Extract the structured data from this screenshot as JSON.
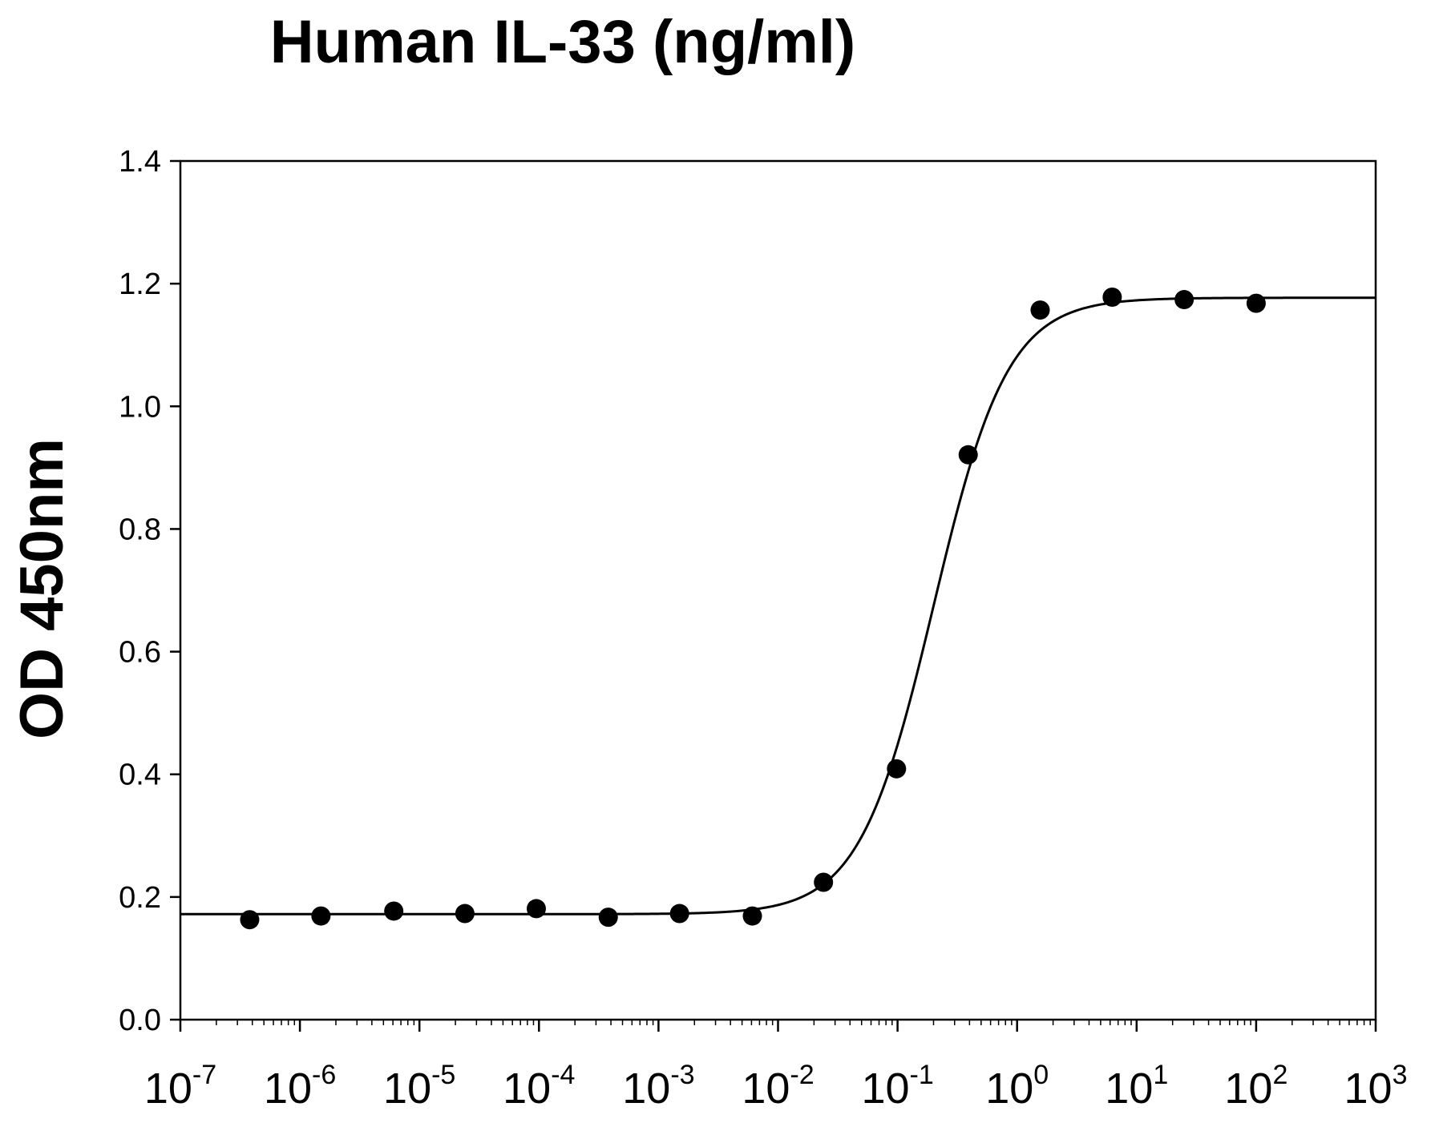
{
  "chart_data": {
    "type": "scatter",
    "title": "Human IL-33 (ng/ml)",
    "xlabel": "",
    "ylabel": "OD 450nm",
    "xscale": "log",
    "xlim": [
      1e-07,
      1000
    ],
    "ylim": [
      0,
      1.4
    ],
    "grid": false,
    "legend": "none",
    "y_ticks": [
      "0.0",
      "0.2",
      "0.4",
      "0.6",
      "0.8",
      "1.0",
      "1.2",
      "1.4"
    ],
    "x_ticks": [
      {
        "base": "10",
        "exp": "-7",
        "value": 1e-07
      },
      {
        "base": "10",
        "exp": "-6",
        "value": 1e-06
      },
      {
        "base": "10",
        "exp": "-5",
        "value": 1e-05
      },
      {
        "base": "10",
        "exp": "-4",
        "value": 0.0001
      },
      {
        "base": "10",
        "exp": "-3",
        "value": 0.001
      },
      {
        "base": "10",
        "exp": "-2",
        "value": 0.01
      },
      {
        "base": "10",
        "exp": "-1",
        "value": 0.1
      },
      {
        "base": "10",
        "exp": "0",
        "value": 1
      },
      {
        "base": "10",
        "exp": "1",
        "value": 10
      },
      {
        "base": "10",
        "exp": "2",
        "value": 100
      },
      {
        "base": "10",
        "exp": "3",
        "value": 1000
      }
    ],
    "series": [
      {
        "name": "Human IL-33",
        "x": [
          3.8e-07,
          1.5e-06,
          6.1e-06,
          2.4e-05,
          9.5e-05,
          0.00038,
          0.0015,
          0.0061,
          0.024,
          0.098,
          0.39,
          1.56,
          6.25,
          25,
          100
        ],
        "y": [
          0.163,
          0.169,
          0.177,
          0.173,
          0.181,
          0.167,
          0.173,
          0.169,
          0.224,
          0.409,
          0.921,
          1.157,
          1.178,
          1.174,
          1.168
        ]
      }
    ],
    "fit_curve": {
      "model": "4PL",
      "bottom": 0.172,
      "top": 1.177,
      "ec50": 0.2,
      "hill": 1.4
    }
  }
}
